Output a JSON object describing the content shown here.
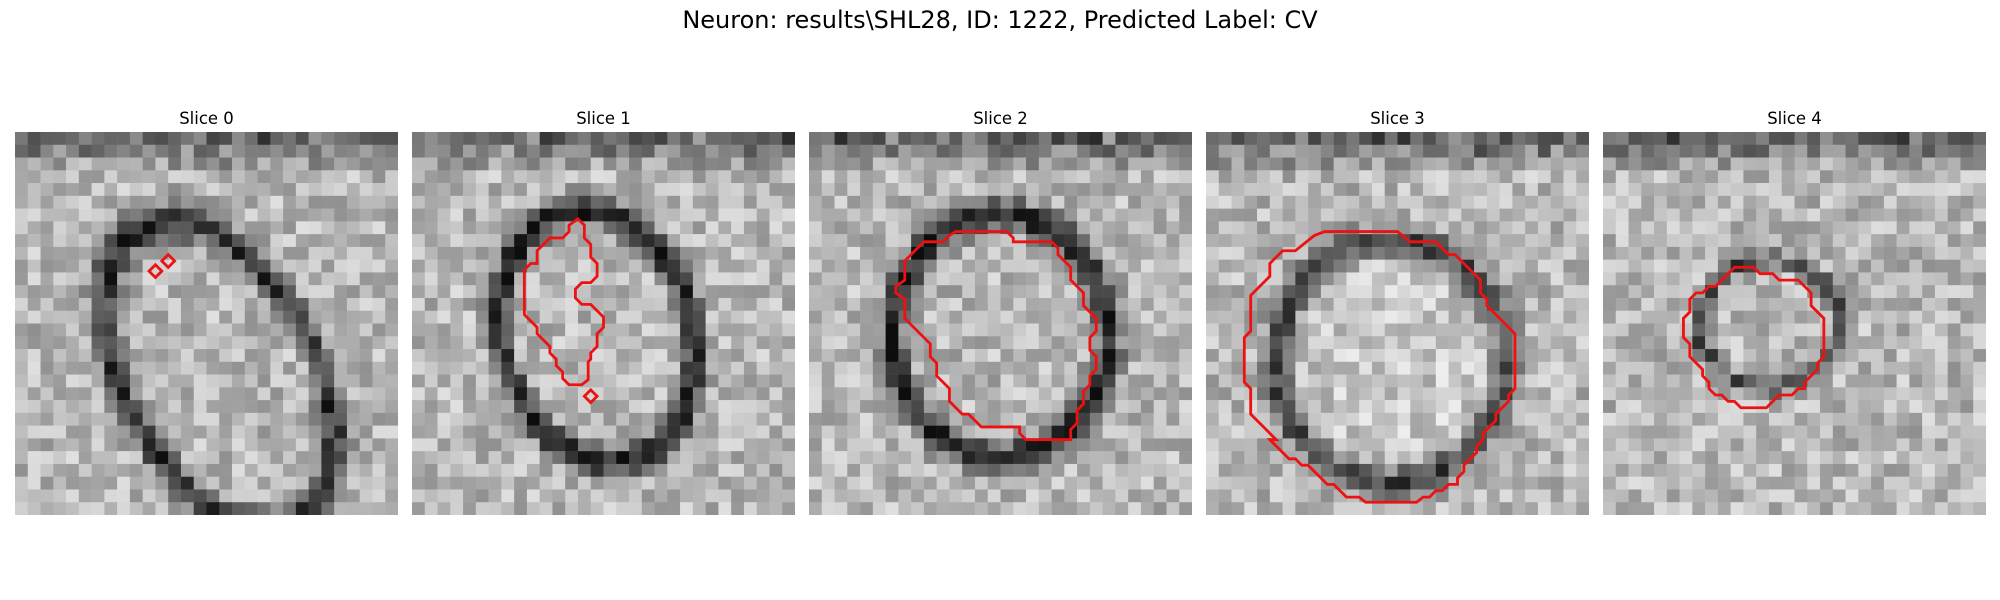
{
  "figure": {
    "title": "Neuron: results\\SHL28, ID: 1222, Predicted Label: CV"
  },
  "panels": [
    {
      "title": "Slice 0"
    },
    {
      "title": "Slice 1"
    },
    {
      "title": "Slice 2"
    },
    {
      "title": "Slice 3"
    },
    {
      "title": "Slice 4"
    }
  ],
  "colors": {
    "contour": "#ee1111",
    "background": "#ffffff"
  }
}
